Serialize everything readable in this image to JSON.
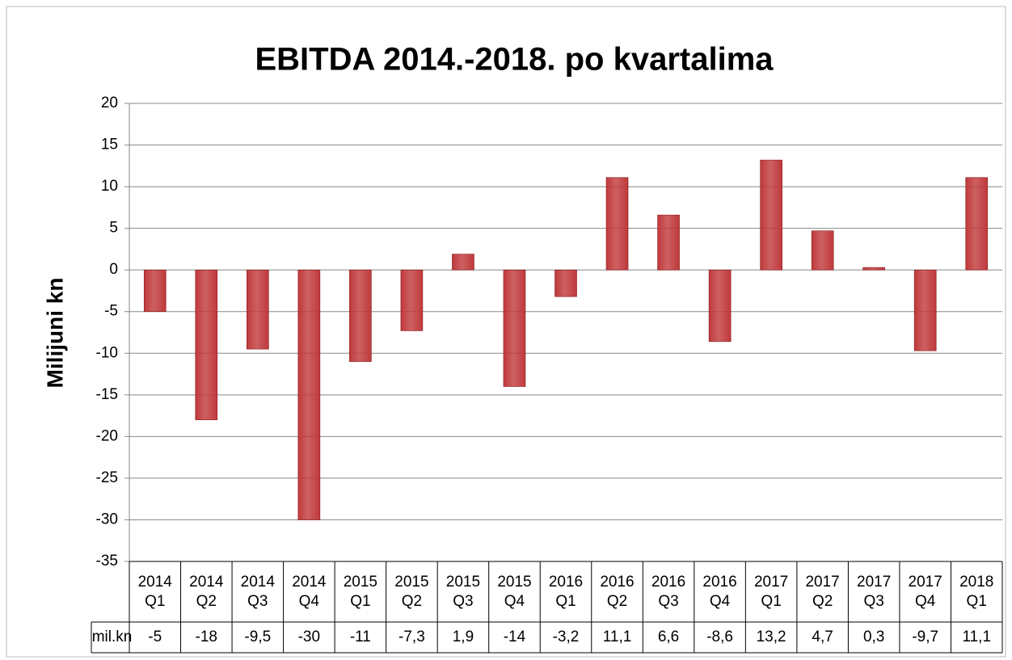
{
  "chart_data": {
    "type": "bar",
    "title": "EBITDA 2014.-2018. po kvartalima",
    "y_label": "Milijuni kn",
    "categories": [
      "2014 Q1",
      "2014 Q2",
      "2014 Q3",
      "2014 Q4",
      "2015 Q1",
      "2015 Q2",
      "2015 Q3",
      "2015 Q4",
      "2016 Q1",
      "2016 Q2",
      "2016 Q3",
      "2016 Q4",
      "2017 Q1",
      "2017 Q2",
      "2017 Q3",
      "2017 Q4",
      "2018 Q1"
    ],
    "series": [
      {
        "name": "mil.kn",
        "color": "#c0393b",
        "values": [
          -5,
          -18,
          -9.5,
          -30,
          -11,
          -7.3,
          1.9,
          -14,
          -3.2,
          11.1,
          6.6,
          -8.6,
          13.2,
          4.7,
          0.3,
          -9.7,
          11.1
        ],
        "value_labels": [
          "-5",
          "-18",
          "-9,5",
          "-30",
          "-11",
          "-7,3",
          "1,9",
          "-14",
          "-3,2",
          "11,1",
          "6,6",
          "-8,6",
          "13,2",
          "4,7",
          "0,3",
          "-9,7",
          "11,1"
        ]
      }
    ],
    "ylim": [
      -35,
      20
    ],
    "yticks": [
      -35,
      -30,
      -25,
      -20,
      -15,
      -10,
      -5,
      0,
      5,
      10,
      15,
      20
    ],
    "grid": true
  }
}
